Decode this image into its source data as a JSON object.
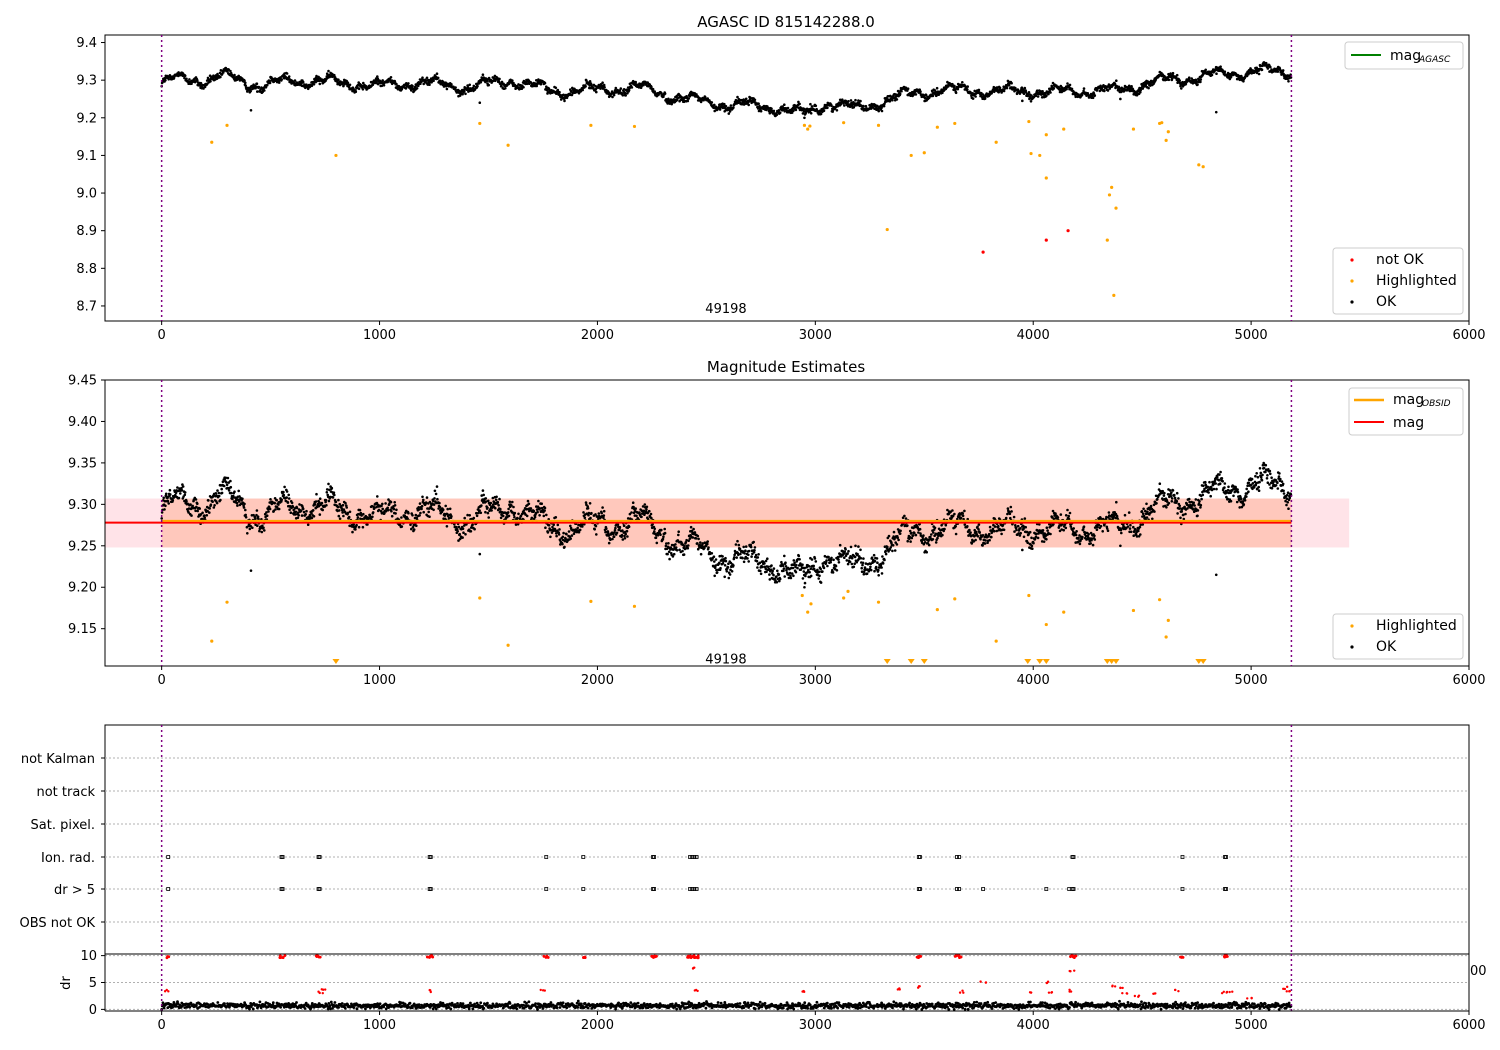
{
  "chart_data": [
    {
      "type": "scatter",
      "title": "AGASC ID 815142288.0",
      "xlim": [
        -260,
        6000
      ],
      "ylim": [
        8.66,
        9.42
      ],
      "x_ticks": [
        0,
        1000,
        2000,
        3000,
        4000,
        5000,
        6000
      ],
      "y_ticks": [
        8.7,
        8.8,
        8.9,
        9.0,
        9.1,
        9.2,
        9.3,
        9.4
      ],
      "obsid_label": "49198",
      "obsid_label_pos": [
        2590,
        8.695
      ],
      "obs_boundaries": [
        0,
        5185
      ],
      "lines": [
        {
          "name": "mag",
          "sub": "AGASC",
          "color": "#008000",
          "value": null
        }
      ],
      "points_ok": {
        "name": "OK",
        "color": "#000000",
        "trend": [
          [
            0,
            9.29
          ],
          [
            80,
            9.305
          ],
          [
            200,
            9.3
          ],
          [
            300,
            9.31
          ],
          [
            450,
            9.285
          ],
          [
            600,
            9.3
          ],
          [
            800,
            9.295
          ],
          [
            1000,
            9.285
          ],
          [
            1200,
            9.295
          ],
          [
            1400,
            9.28
          ],
          [
            1600,
            9.3
          ],
          [
            1800,
            9.27
          ],
          [
            2000,
            9.275
          ],
          [
            2200,
            9.28
          ],
          [
            2400,
            9.25
          ],
          [
            2600,
            9.235
          ],
          [
            2800,
            9.23
          ],
          [
            2950,
            9.21
          ],
          [
            3050,
            9.24
          ],
          [
            3200,
            9.225
          ],
          [
            3400,
            9.26
          ],
          [
            3600,
            9.275
          ],
          [
            3800,
            9.27
          ],
          [
            4000,
            9.27
          ],
          [
            4200,
            9.27
          ],
          [
            4400,
            9.275
          ],
          [
            4600,
            9.3
          ],
          [
            4800,
            9.31
          ],
          [
            5000,
            9.325
          ],
          [
            5185,
            9.32
          ]
        ],
        "outliers": [
          [
            410,
            9.22
          ],
          [
            1460,
            9.24
          ],
          [
            2950,
            9.2
          ],
          [
            3950,
            9.245
          ],
          [
            4050,
            9.255
          ],
          [
            4400,
            9.25
          ],
          [
            4840,
            9.215
          ]
        ]
      },
      "points_highlighted": {
        "name": "Highlighted",
        "color": "#ffa500",
        "points": [
          [
            230,
            9.135
          ],
          [
            300,
            9.18
          ],
          [
            800,
            9.1
          ],
          [
            1460,
            9.185
          ],
          [
            1590,
            9.127
          ],
          [
            1970,
            9.18
          ],
          [
            2170,
            9.177
          ],
          [
            2950,
            9.18
          ],
          [
            2965,
            9.17
          ],
          [
            2975,
            9.178
          ],
          [
            3130,
            9.187
          ],
          [
            3290,
            9.18
          ],
          [
            3330,
            8.903
          ],
          [
            3440,
            9.1
          ],
          [
            3500,
            9.107
          ],
          [
            3560,
            9.175
          ],
          [
            3640,
            9.185
          ],
          [
            3830,
            9.135
          ],
          [
            3980,
            9.19
          ],
          [
            3990,
            9.105
          ],
          [
            4030,
            9.1
          ],
          [
            4060,
            9.155
          ],
          [
            4060,
            9.04
          ],
          [
            4140,
            9.17
          ],
          [
            4340,
            8.875
          ],
          [
            4350,
            8.995
          ],
          [
            4360,
            9.015
          ],
          [
            4370,
            8.728
          ],
          [
            4380,
            8.96
          ],
          [
            4460,
            9.17
          ],
          [
            4580,
            9.185
          ],
          [
            4590,
            9.187
          ],
          [
            4610,
            9.14
          ],
          [
            4620,
            9.163
          ],
          [
            4760,
            9.075
          ],
          [
            4780,
            9.07
          ]
        ]
      },
      "points_not_ok": {
        "name": "not OK",
        "color": "#ff0000",
        "points": [
          [
            3770,
            8.843
          ],
          [
            4060,
            8.875
          ],
          [
            4160,
            8.9
          ]
        ]
      },
      "legend_upper": "top-right",
      "legend_lower": "bottom-right"
    },
    {
      "type": "scatter",
      "title": "Magnitude Estimates",
      "xlim": [
        -260,
        6000
      ],
      "ylim": [
        9.105,
        9.45
      ],
      "x_ticks": [
        0,
        1000,
        2000,
        3000,
        4000,
        5000,
        6000
      ],
      "y_ticks": [
        9.15,
        9.2,
        9.25,
        9.3,
        9.35,
        9.4,
        9.45
      ],
      "obsid_label": "49198",
      "obsid_label_pos": [
        2590,
        9.114
      ],
      "obs_boundaries": [
        0,
        5185
      ],
      "mag": 9.278,
      "mag_obsid": 9.28,
      "band_obsid": [
        9.248,
        9.307
      ],
      "band_agasc": [
        9.248,
        9.307
      ],
      "band_agasc_extent": [
        -260,
        5450
      ],
      "lines": [
        {
          "name": "mag",
          "sub": "OBSID",
          "color": "#ffa500"
        },
        {
          "name": "mag",
          "sub": "",
          "color": "#ff0000"
        }
      ],
      "points_highlighted": {
        "name": "Highlighted",
        "color": "#ffa500",
        "points": [
          [
            230,
            9.135
          ],
          [
            300,
            9.182
          ],
          [
            1460,
            9.187
          ],
          [
            1590,
            9.13
          ],
          [
            1970,
            9.183
          ],
          [
            2170,
            9.177
          ],
          [
            2940,
            9.19
          ],
          [
            2965,
            9.17
          ],
          [
            2980,
            9.18
          ],
          [
            3130,
            9.187
          ],
          [
            3150,
            9.195
          ],
          [
            3290,
            9.182
          ],
          [
            3560,
            9.173
          ],
          [
            3640,
            9.186
          ],
          [
            3830,
            9.135
          ],
          [
            3980,
            9.19
          ],
          [
            4060,
            9.155
          ],
          [
            4140,
            9.17
          ],
          [
            4460,
            9.172
          ],
          [
            4580,
            9.185
          ],
          [
            4610,
            9.14
          ],
          [
            4620,
            9.16
          ]
        ],
        "below_limit": [
          800,
          3330,
          3440,
          3500,
          3975,
          4030,
          4060,
          4340,
          4360,
          4380,
          4760,
          4780
        ]
      },
      "legend_upper": "top-right",
      "legend_lower": "bottom-right"
    },
    {
      "type": "scatter",
      "title": "",
      "xlim": [
        -260,
        6000
      ],
      "categories": [
        "not Kalman",
        "not track",
        "Sat. pixel.",
        "Ion. rad.",
        "dr > 5",
        "OBS not OK"
      ],
      "obs_boundaries": [
        0,
        5185
      ],
      "flags": {
        "Ion. rad.": [
          30,
          550,
          555,
          720,
          725,
          1230,
          1235,
          1765,
          1935,
          2255,
          2260,
          2425,
          2435,
          2445,
          2455,
          3475,
          3480,
          3650,
          3660,
          4180,
          4185,
          4685,
          4880,
          4885
        ],
        "dr > 5": [
          30,
          550,
          555,
          720,
          725,
          1230,
          1235,
          1765,
          1935,
          2255,
          2260,
          2425,
          2435,
          2445,
          2455,
          3475,
          3480,
          3650,
          3660,
          3770,
          4060,
          4165,
          4180,
          4185,
          4685,
          4880,
          4885
        ]
      }
    },
    {
      "type": "scatter",
      "title": "",
      "ylabel": "dr",
      "xlim": [
        -260,
        6000
      ],
      "ylim": [
        -0.3,
        10.3
      ],
      "x_ticks": [
        0,
        1000,
        2000,
        3000,
        4000,
        5000,
        6000
      ],
      "y_ticks": [
        0,
        5,
        10
      ],
      "obs_boundaries": [
        0,
        5185
      ],
      "dr_large": [
        30,
        550,
        555,
        720,
        725,
        1230,
        1235,
        1765,
        1935,
        2255,
        2260,
        2425,
        2435,
        2445,
        2455,
        3475,
        3480,
        3650,
        3660,
        4180,
        4185,
        4685,
        4880,
        4885
      ],
      "dr_medium": [
        [
          25,
          3.5
        ],
        [
          730,
          3.2
        ],
        [
          740,
          3.6
        ],
        [
          1240,
          3.4
        ],
        [
          1750,
          3.6
        ],
        [
          2440,
          7.8
        ],
        [
          2460,
          3.5
        ],
        [
          2950,
          3.3
        ],
        [
          3380,
          3.8
        ],
        [
          3480,
          4.2
        ],
        [
          3670,
          3.3
        ],
        [
          3770,
          5.0
        ],
        [
          3990,
          3.0
        ],
        [
          4060,
          5.0
        ],
        [
          4080,
          3.2
        ],
        [
          4160,
          3.5
        ],
        [
          4180,
          7.2
        ],
        [
          4370,
          4.3
        ],
        [
          4400,
          4.0
        ],
        [
          4420,
          3.1
        ],
        [
          4480,
          2.5
        ],
        [
          4560,
          3.0
        ],
        [
          4660,
          3.5
        ],
        [
          4880,
          3.2
        ],
        [
          4900,
          3.3
        ],
        [
          4990,
          2.2
        ],
        [
          5160,
          4.0
        ],
        [
          5170,
          3.2
        ]
      ],
      "stray_tick": "00"
    }
  ]
}
